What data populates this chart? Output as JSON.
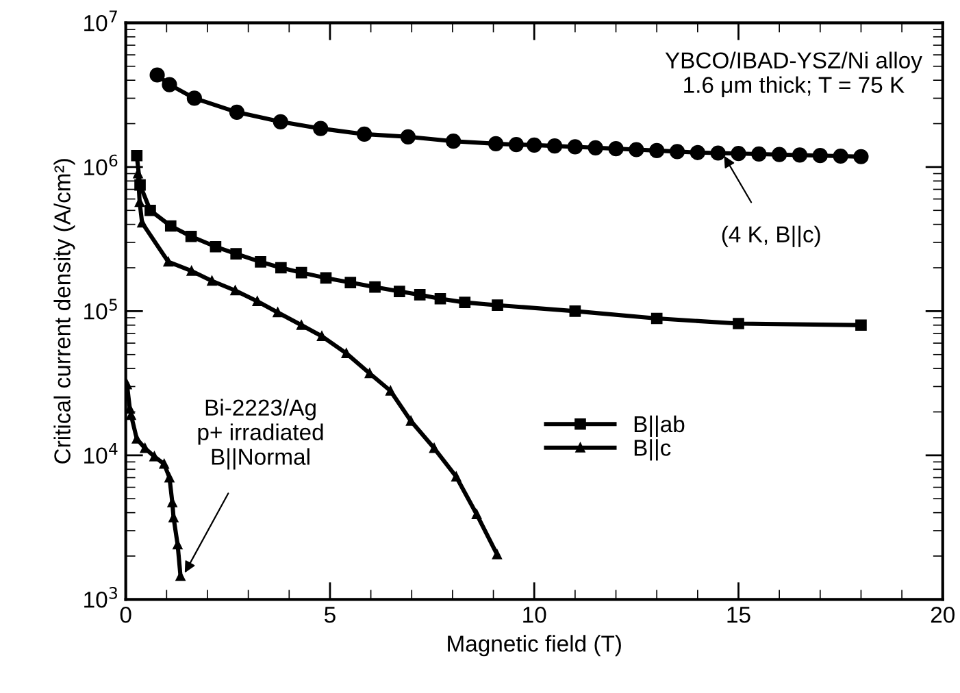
{
  "chart_data": {
    "type": "line",
    "xlabel": "Magnetic field (T)",
    "ylabel": "Critical current density (A/cm²)",
    "log": "y",
    "xlim": [
      0,
      20
    ],
    "xticks": [
      0,
      5,
      10,
      15,
      20
    ],
    "ylim": [
      1000,
      10000000
    ],
    "yticks": [
      {
        "value": 1000,
        "label": "10$^{3}$"
      },
      {
        "value": 10000,
        "label": "10$^{4}$"
      },
      {
        "value": 100000,
        "label": "10$^{5}$"
      },
      {
        "value": 1000000,
        "label": "10$^{6}$"
      },
      {
        "value": 10000000,
        "label": "10$^{7}$"
      }
    ],
    "grid": false,
    "legend": "right",
    "series": [
      {
        "color": "#000000",
        "marker": "circle",
        "x": [
          0.77,
          1.07,
          1.68,
          2.72,
          3.79,
          4.77,
          5.84,
          6.91,
          8.02,
          9.06,
          9.56,
          10.0,
          10.5,
          11.0,
          11.5,
          12.0,
          12.5,
          13.0,
          13.5,
          14.0,
          14.5,
          15.0,
          15.5,
          16.0,
          16.5,
          17.0,
          17.5,
          18.0
        ],
        "values": [
          4350000,
          3730000,
          3000000,
          2400000,
          2060000,
          1850000,
          1690000,
          1620000,
          1510000,
          1450000,
          1430000,
          1420000,
          1400000,
          1380000,
          1360000,
          1340000,
          1320000,
          1300000,
          1280000,
          1260000,
          1250000,
          1240000,
          1230000,
          1220000,
          1210000,
          1200000,
          1190000,
          1180000
        ]
      },
      {
        "name": "B||ab",
        "color": "#000000",
        "marker": "square",
        "x": [
          0.27,
          0.35,
          0.6,
          1.1,
          1.6,
          2.2,
          2.7,
          3.3,
          3.8,
          4.3,
          4.9,
          5.5,
          6.1,
          6.7,
          7.2,
          7.7,
          8.3,
          9.1,
          11.0,
          13.0,
          15.0,
          18.0
        ],
        "values": [
          1200000,
          750000,
          500000,
          390000,
          330000,
          280000,
          250000,
          220000,
          200000,
          185000,
          170000,
          158000,
          147000,
          137000,
          130000,
          122000,
          115000,
          110000,
          100000,
          89000,
          82000,
          80000
        ]
      },
      {
        "name": "B||c",
        "color": "#000000",
        "marker": "triangle",
        "x": [
          0.3,
          0.34,
          0.4,
          1.04,
          1.61,
          2.11,
          2.68,
          3.22,
          3.72,
          4.3,
          4.8,
          5.4,
          5.97,
          6.48,
          6.98,
          7.55,
          8.09,
          8.59,
          9.09
        ],
        "values": [
          900000,
          570000,
          410000,
          220000,
          190000,
          162000,
          139000,
          117000,
          98000,
          80000,
          67000,
          51000,
          37000,
          28000,
          17300,
          11200,
          7100,
          3900,
          2050
        ]
      },
      {
        "color": "#000000",
        "marker": "triangle",
        "x": [
          0.03,
          0.1,
          0.13,
          0.27,
          0.47,
          0.7,
          0.94,
          1.07,
          1.14,
          1.17,
          1.27,
          1.34
        ],
        "values": [
          31000,
          21000,
          19000,
          13000,
          11200,
          9800,
          8700,
          7000,
          4700,
          3700,
          2400,
          1450
        ]
      }
    ],
    "annotations": [
      "YBCO/IBAD-YSZ/Ni alloy\n1.6 μm thick; T = 75 K",
      {
        "text": "(4 K, B||c)",
        "x": 14.6,
        "y": 1260000
      },
      {
        "text": "Bi-2223/Ag\np+ irradiated\nB||Normal",
        "x": 1.4,
        "y": 1450
      }
    ]
  }
}
